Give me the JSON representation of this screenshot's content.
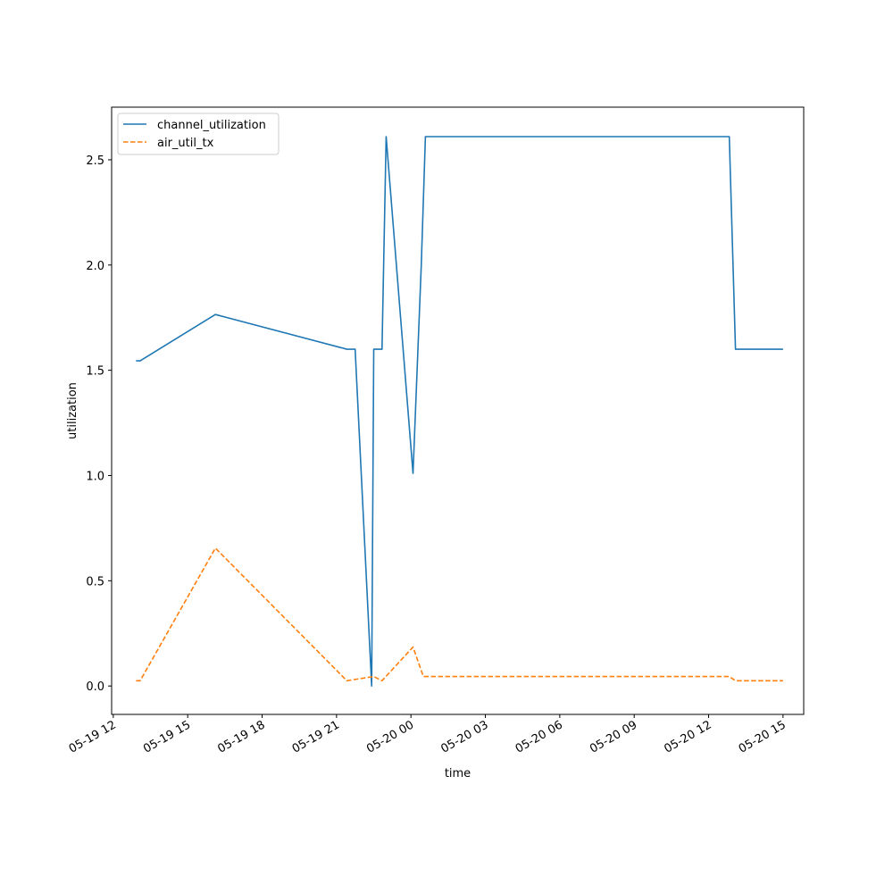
{
  "chart_data": {
    "type": "line",
    "title": "",
    "xlabel": "time",
    "ylabel": "utilization",
    "x_axis_type": "datetime",
    "xlim": [
      "2024-05-19 11:56",
      "2024-05-20 15:50"
    ],
    "ylim": [
      -0.135,
      2.75
    ],
    "grid": false,
    "legend_position": "upper left",
    "x_ticks": [
      {
        "t": "2024-05-19 12:00",
        "label": "05-19 12"
      },
      {
        "t": "2024-05-19 15:00",
        "label": "05-19 15"
      },
      {
        "t": "2024-05-19 18:00",
        "label": "05-19 18"
      },
      {
        "t": "2024-05-19 21:00",
        "label": "05-19 21"
      },
      {
        "t": "2024-05-20 00:00",
        "label": "05-20 00"
      },
      {
        "t": "2024-05-20 03:00",
        "label": "05-20 03"
      },
      {
        "t": "2024-05-20 06:00",
        "label": "05-20 06"
      },
      {
        "t": "2024-05-20 09:00",
        "label": "05-20 09"
      },
      {
        "t": "2024-05-20 12:00",
        "label": "05-20 12"
      },
      {
        "t": "2024-05-20 15:00",
        "label": "05-20 15"
      }
    ],
    "y_ticks": [
      {
        "v": 0.0,
        "label": "0.0"
      },
      {
        "v": 0.5,
        "label": "0.5"
      },
      {
        "v": 1.0,
        "label": "1.0"
      },
      {
        "v": 1.5,
        "label": "1.5"
      },
      {
        "v": 2.0,
        "label": "2.0"
      },
      {
        "v": 2.5,
        "label": "2.5"
      }
    ],
    "series": [
      {
        "name": "channel_utilization",
        "color": "#1f77b4",
        "style": "solid",
        "points": [
          [
            "2024-05-19 12:55",
            1.545
          ],
          [
            "2024-05-19 13:05",
            1.545
          ],
          [
            "2024-05-19 16:07",
            1.765
          ],
          [
            "2024-05-19 21:25",
            1.6
          ],
          [
            "2024-05-19 21:45",
            1.6
          ],
          [
            "2024-05-19 22:25",
            0.0
          ],
          [
            "2024-05-19 22:30",
            1.6
          ],
          [
            "2024-05-19 22:50",
            1.6
          ],
          [
            "2024-05-19 23:00",
            2.61
          ],
          [
            "2024-05-20 00:05",
            1.01
          ],
          [
            "2024-05-20 00:25",
            2.0
          ],
          [
            "2024-05-20 00:35",
            2.61
          ],
          [
            "2024-05-20 12:50",
            2.61
          ],
          [
            "2024-05-20 13:05",
            1.6
          ],
          [
            "2024-05-20 15:00",
            1.6
          ]
        ]
      },
      {
        "name": "air_util_tx",
        "color": "#ff7f0e",
        "style": "dashed",
        "points": [
          [
            "2024-05-19 12:55",
            0.025
          ],
          [
            "2024-05-19 13:05",
            0.025
          ],
          [
            "2024-05-19 16:07",
            0.655
          ],
          [
            "2024-05-19 21:25",
            0.025
          ],
          [
            "2024-05-19 22:30",
            0.045
          ],
          [
            "2024-05-19 22:50",
            0.025
          ],
          [
            "2024-05-20 00:05",
            0.185
          ],
          [
            "2024-05-20 00:30",
            0.045
          ],
          [
            "2024-05-20 12:50",
            0.045
          ],
          [
            "2024-05-20 13:05",
            0.025
          ],
          [
            "2024-05-20 15:00",
            0.025
          ]
        ]
      }
    ]
  }
}
